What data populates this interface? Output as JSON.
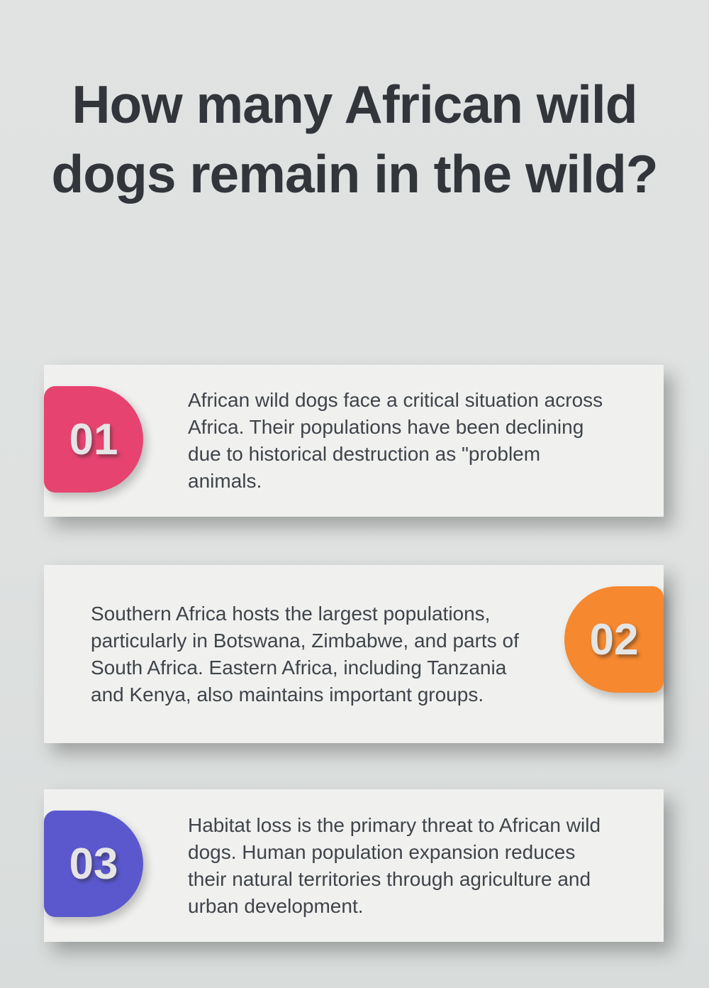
{
  "page": {
    "title": "How many African wild dogs remain in the wild?"
  },
  "colors": {
    "page_background": "#dee1e0",
    "card_background": "#f0f1ef",
    "title_text": "#32363b",
    "body_text": "#3f444a",
    "badge_number_text": "#e5e5e5",
    "badge_pink": "#e74370",
    "badge_orange": "#f6882f",
    "badge_blue": "#5b58ce"
  },
  "cards": [
    {
      "number": "01",
      "badge_side": "left",
      "badge_color": "#e74370",
      "text": "African wild dogs face a critical situation across Africa. Their populations have been declining due to historical destruction as \"problem animals."
    },
    {
      "number": "02",
      "badge_side": "right",
      "badge_color": "#f6882f",
      "text": "Southern Africa hosts the largest populations, particularly in Botswana, Zimbabwe, and parts of South Africa. Eastern Africa, including Tanzania and Kenya, also maintains important groups."
    },
    {
      "number": "03",
      "badge_side": "left",
      "badge_color": "#5b58ce",
      "text": "Habitat loss is the primary threat to African wild dogs. Human population expansion reduces their natural territories through agriculture and urban development."
    }
  ]
}
